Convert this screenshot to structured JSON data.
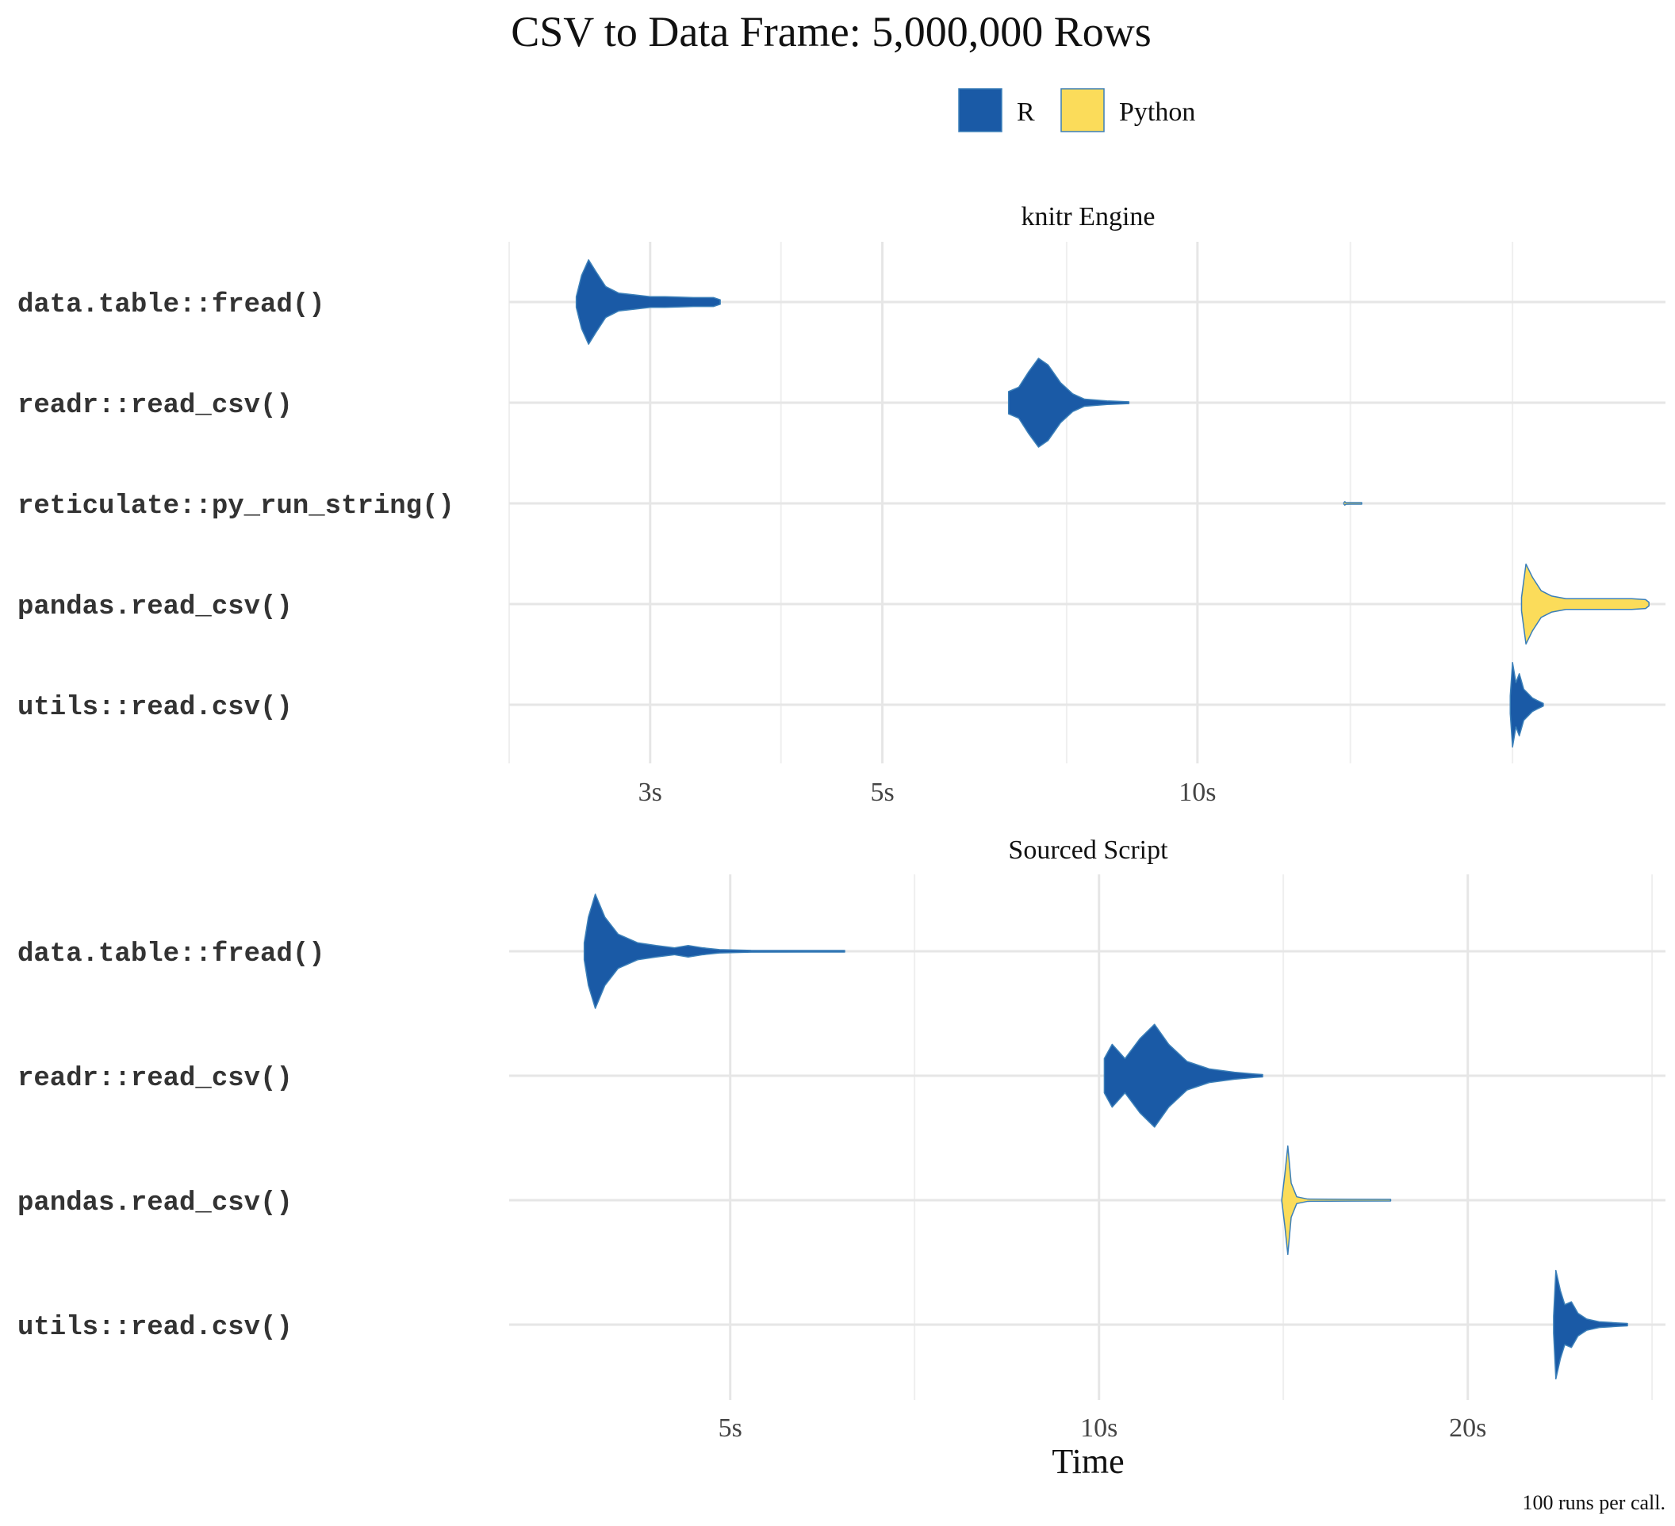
{
  "title": "CSV to Data Frame: 5,000,000 Rows",
  "caption": "100 runs per call.",
  "colors": {
    "R": "#1a5aa6",
    "Python": "#fbdc5a",
    "outline": "#3b7fb8",
    "grid": "#e6e6e6"
  },
  "legend": {
    "placement": "top",
    "items": [
      {
        "name": "R",
        "color": "#1a5aa6"
      },
      {
        "name": "Python",
        "color": "#fbdc5a"
      }
    ]
  },
  "chart_data": [
    {
      "type": "violin",
      "facet": "knitr Engine",
      "xlabel": "",
      "x_scale": "log",
      "xlim": [
        2.2,
        28
      ],
      "x_ticks": [
        {
          "value": 3,
          "label": "3s"
        },
        {
          "value": 5,
          "label": "5s"
        },
        {
          "value": 10,
          "label": "10s"
        }
      ],
      "x_grid_minor": [
        2.2,
        4,
        7.5,
        14,
        20
      ],
      "categories": [
        "data.table::fread()",
        "readr::read_csv()",
        "reticulate::py_run_string()",
        "pandas.read_csv()",
        "utils::read.csv()"
      ],
      "series": [
        {
          "name": "R",
          "category": "data.table::fread()",
          "min": 2.55,
          "max": 3.5,
          "profile": [
            [
              2.55,
              0.12
            ],
            [
              2.58,
              0.6
            ],
            [
              2.62,
              0.95
            ],
            [
              2.66,
              0.7
            ],
            [
              2.72,
              0.35
            ],
            [
              2.8,
              0.2
            ],
            [
              2.9,
              0.16
            ],
            [
              3.0,
              0.12
            ],
            [
              3.1,
              0.12
            ],
            [
              3.3,
              0.1
            ],
            [
              3.45,
              0.1
            ],
            [
              3.5,
              0.05
            ]
          ]
        },
        {
          "name": "R",
          "category": "readr::read_csv()",
          "min": 6.6,
          "max": 8.6,
          "profile": [
            [
              6.6,
              0.25
            ],
            [
              6.75,
              0.35
            ],
            [
              6.9,
              0.7
            ],
            [
              7.05,
              1.0
            ],
            [
              7.2,
              0.85
            ],
            [
              7.4,
              0.45
            ],
            [
              7.6,
              0.2
            ],
            [
              7.8,
              0.08
            ],
            [
              8.2,
              0.04
            ],
            [
              8.6,
              0.02
            ]
          ]
        },
        {
          "name": "Python",
          "category": "reticulate::py_run_string()",
          "min": 13.8,
          "max": 14.35,
          "profile": [
            [
              13.8,
              0.01
            ],
            [
              13.83,
              0.04
            ],
            [
              13.86,
              0.02
            ],
            [
              14.0,
              0.01
            ],
            [
              14.35,
              0.01
            ]
          ]
        },
        {
          "name": "Python",
          "category": "pandas.read_csv()",
          "min": 20.4,
          "max": 27.0,
          "profile": [
            [
              20.4,
              0.15
            ],
            [
              20.6,
              0.9
            ],
            [
              20.9,
              0.6
            ],
            [
              21.3,
              0.3
            ],
            [
              21.8,
              0.18
            ],
            [
              22.5,
              0.12
            ],
            [
              23.5,
              0.12
            ],
            [
              24.8,
              0.12
            ],
            [
              26,
              0.12
            ],
            [
              26.8,
              0.1
            ],
            [
              27.0,
              0.04
            ]
          ]
        },
        {
          "name": "R",
          "category": "utils::read.csv()",
          "min": 19.9,
          "max": 21.4,
          "profile": [
            [
              19.9,
              0.2
            ],
            [
              20.0,
              0.95
            ],
            [
              20.15,
              0.5
            ],
            [
              20.3,
              0.7
            ],
            [
              20.5,
              0.35
            ],
            [
              20.7,
              0.25
            ],
            [
              20.9,
              0.15
            ],
            [
              21.1,
              0.1
            ],
            [
              21.4,
              0.03
            ]
          ]
        }
      ]
    },
    {
      "type": "violin",
      "facet": "Sourced Script",
      "xlabel": "Time",
      "x_scale": "log",
      "xlim": [
        3.3,
        29
      ],
      "x_ticks": [
        {
          "value": 5,
          "label": "5s"
        },
        {
          "value": 10,
          "label": "10s"
        },
        {
          "value": 20,
          "label": "20s"
        }
      ],
      "x_grid_minor": [
        7.07,
        14.14,
        28.28
      ],
      "categories": [
        "data.table::fread()",
        "readr::read_csv()",
        "pandas.read_csv()",
        "utils::read.csv()"
      ],
      "series": [
        {
          "name": "R",
          "category": "data.table::fread()",
          "min": 3.8,
          "max": 6.2,
          "profile": [
            [
              3.8,
              0.15
            ],
            [
              3.83,
              0.6
            ],
            [
              3.88,
              1.0
            ],
            [
              3.95,
              0.6
            ],
            [
              4.05,
              0.3
            ],
            [
              4.2,
              0.15
            ],
            [
              4.35,
              0.1
            ],
            [
              4.5,
              0.06
            ],
            [
              4.62,
              0.1
            ],
            [
              4.75,
              0.06
            ],
            [
              4.9,
              0.03
            ],
            [
              5.2,
              0.015
            ],
            [
              6.2,
              0.01
            ]
          ]
        },
        {
          "name": "R",
          "category": "readr::read_csv()",
          "min": 10.1,
          "max": 13.6,
          "profile": [
            [
              10.1,
              0.3
            ],
            [
              10.25,
              0.55
            ],
            [
              10.5,
              0.3
            ],
            [
              10.8,
              0.65
            ],
            [
              11.1,
              0.9
            ],
            [
              11.4,
              0.55
            ],
            [
              11.8,
              0.25
            ],
            [
              12.3,
              0.12
            ],
            [
              12.9,
              0.06
            ],
            [
              13.4,
              0.03
            ],
            [
              13.6,
              0.02
            ]
          ]
        },
        {
          "name": "Python",
          "category": "pandas.read_csv()",
          "min": 14.1,
          "max": 17.3,
          "profile": [
            [
              14.1,
              0.02
            ],
            [
              14.18,
              0.45
            ],
            [
              14.26,
              0.95
            ],
            [
              14.35,
              0.3
            ],
            [
              14.5,
              0.06
            ],
            [
              14.8,
              0.02
            ],
            [
              16.0,
              0.015
            ],
            [
              17.3,
              0.01
            ]
          ]
        },
        {
          "name": "R",
          "category": "utils::read.csv()",
          "min": 23.5,
          "max": 27.0,
          "profile": [
            [
              23.5,
              0.15
            ],
            [
              23.6,
              0.95
            ],
            [
              23.8,
              0.6
            ],
            [
              24.0,
              0.35
            ],
            [
              24.3,
              0.4
            ],
            [
              24.6,
              0.2
            ],
            [
              25.0,
              0.1
            ],
            [
              25.6,
              0.05
            ],
            [
              26.5,
              0.03
            ],
            [
              27.0,
              0.02
            ]
          ]
        }
      ]
    }
  ]
}
